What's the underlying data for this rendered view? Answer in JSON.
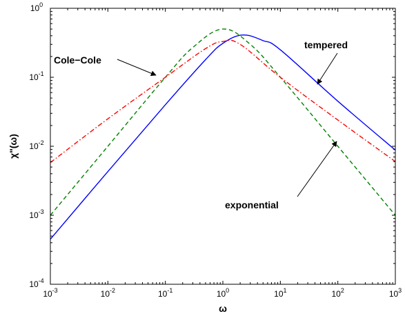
{
  "chart_data": {
    "type": "line",
    "xlabel": "ω",
    "ylabel": "χ\"(ω)",
    "xscale": "log",
    "yscale": "log",
    "xlim": [
      0.001,
      1000
    ],
    "ylim": [
      0.0001,
      1
    ],
    "grid": false,
    "x_ticks": [
      {
        "base": "10",
        "exp": "-3"
      },
      {
        "base": "10",
        "exp": "-2"
      },
      {
        "base": "10",
        "exp": "-1"
      },
      {
        "base": "10",
        "exp": "0"
      },
      {
        "base": "10",
        "exp": "1"
      },
      {
        "base": "10",
        "exp": "2"
      },
      {
        "base": "10",
        "exp": "3"
      }
    ],
    "y_ticks": [
      {
        "base": "10",
        "exp": "-4"
      },
      {
        "base": "10",
        "exp": "-3"
      },
      {
        "base": "10",
        "exp": "-2"
      },
      {
        "base": "10",
        "exp": "-1"
      },
      {
        "base": "10",
        "exp": "0"
      }
    ],
    "series": [
      {
        "label_key": "tempered",
        "color": "#0000ff",
        "dash": "solid",
        "x": [
          0.001,
          0.01,
          0.1,
          0.5,
          1,
          2.2,
          5,
          10,
          100,
          1000
        ],
        "y": [
          0.00045,
          0.0043,
          0.04,
          0.18,
          0.31,
          0.41,
          0.34,
          0.25,
          0.045,
          0.0088
        ]
      },
      {
        "label_key": "exponential",
        "color": "#008000",
        "dash": "dashed",
        "x": [
          0.001,
          0.01,
          0.1,
          0.3,
          1,
          3,
          10,
          100,
          1000
        ],
        "y": [
          0.001,
          0.01,
          0.1,
          0.27,
          0.5,
          0.3,
          0.1,
          0.01,
          0.001
        ]
      },
      {
        "label_key": "cole_cole",
        "color": "#ff0000",
        "dash": "dashdot",
        "x": [
          0.001,
          0.01,
          0.1,
          0.5,
          1,
          2,
          10,
          100,
          1000
        ],
        "y": [
          0.0058,
          0.025,
          0.1,
          0.26,
          0.33,
          0.3,
          0.1,
          0.024,
          0.006
        ]
      }
    ],
    "annotations": {
      "cole_cole": "Cole−Cole",
      "tempered": "tempered",
      "exponential": "exponential"
    }
  }
}
